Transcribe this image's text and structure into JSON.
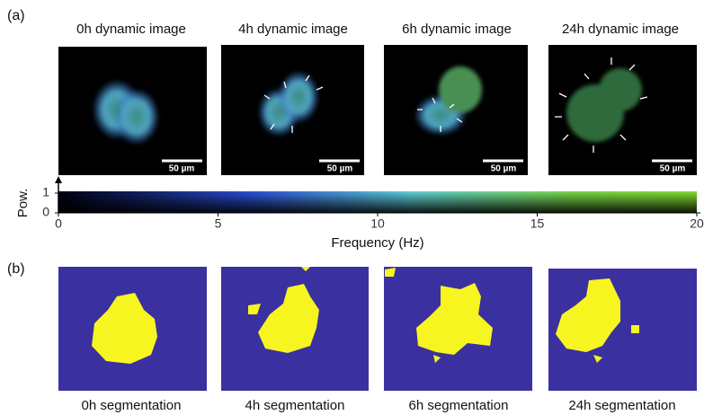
{
  "panel_a": {
    "label": "(a)",
    "images": [
      {
        "title": "0h dynamic image",
        "scale_label": "50 µm"
      },
      {
        "title": "4h dynamic image",
        "scale_label": "50 µm"
      },
      {
        "title": "6h dynamic image",
        "scale_label": "50 µm"
      },
      {
        "title": "24h dynamic image",
        "scale_label": "50 µm"
      }
    ],
    "colorbar": {
      "xlabel": "Frequency (Hz)",
      "xlim": [
        0,
        20
      ],
      "xticks": [
        0,
        5,
        10,
        15,
        20
      ],
      "ylabel": "Pow.",
      "ylim": [
        0,
        1
      ],
      "yticks": [
        0,
        1
      ]
    }
  },
  "panel_b": {
    "label": "(b)",
    "images": [
      {
        "caption": "0h segmentation"
      },
      {
        "caption": "4h segmentation"
      },
      {
        "caption": "6h segmentation"
      },
      {
        "caption": "24h segmentation"
      }
    ]
  }
}
